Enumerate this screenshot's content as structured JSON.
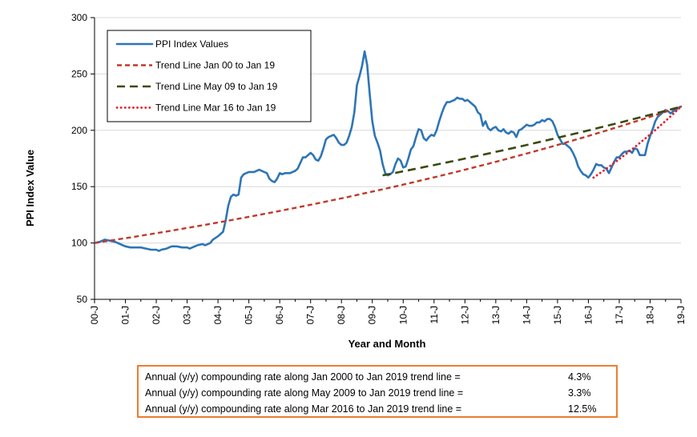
{
  "chart_data": {
    "type": "line",
    "xlabel": "Year and Month",
    "ylabel": "PPI Index Value",
    "ylim": [
      50,
      300
    ],
    "yticks": [
      50,
      100,
      150,
      200,
      250,
      300
    ],
    "x_range": [
      0,
      228
    ],
    "xticks": [
      {
        "x": 0,
        "label": "00-J"
      },
      {
        "x": 12,
        "label": "01-J"
      },
      {
        "x": 24,
        "label": "02-J"
      },
      {
        "x": 36,
        "label": "03-J"
      },
      {
        "x": 48,
        "label": "04-J"
      },
      {
        "x": 60,
        "label": "05-J"
      },
      {
        "x": 72,
        "label": "06-J"
      },
      {
        "x": 84,
        "label": "07-J"
      },
      {
        "x": 96,
        "label": "08-J"
      },
      {
        "x": 108,
        "label": "09-J"
      },
      {
        "x": 120,
        "label": "10-J"
      },
      {
        "x": 132,
        "label": "11-J"
      },
      {
        "x": 144,
        "label": "12-J"
      },
      {
        "x": 156,
        "label": "13-J"
      },
      {
        "x": 168,
        "label": "14-J"
      },
      {
        "x": 180,
        "label": "15-J"
      },
      {
        "x": 192,
        "label": "16-J"
      },
      {
        "x": 204,
        "label": "17-J"
      },
      {
        "x": 216,
        "label": "18-J"
      },
      {
        "x": 228,
        "label": "19-J"
      }
    ],
    "legend_position": "top-left",
    "series": [
      {
        "name": "PPI Index Values",
        "color": "#2E75B6",
        "style": "solid",
        "points": [
          [
            0,
            100
          ],
          [
            2,
            101
          ],
          [
            4,
            103
          ],
          [
            6,
            102
          ],
          [
            8,
            101
          ],
          [
            10,
            99
          ],
          [
            12,
            97
          ],
          [
            14,
            96
          ],
          [
            16,
            96
          ],
          [
            18,
            96
          ],
          [
            20,
            95
          ],
          [
            22,
            94
          ],
          [
            24,
            94
          ],
          [
            25,
            93
          ],
          [
            26,
            94
          ],
          [
            28,
            95
          ],
          [
            30,
            97
          ],
          [
            32,
            97
          ],
          [
            34,
            96
          ],
          [
            36,
            96
          ],
          [
            37,
            95
          ],
          [
            38,
            96
          ],
          [
            40,
            98
          ],
          [
            42,
            99
          ],
          [
            43,
            98
          ],
          [
            45,
            100
          ],
          [
            46,
            103
          ],
          [
            48,
            106
          ],
          [
            50,
            110
          ],
          [
            51,
            120
          ],
          [
            52,
            133
          ],
          [
            53,
            141
          ],
          [
            54,
            143
          ],
          [
            55,
            142
          ],
          [
            56,
            143
          ],
          [
            57,
            158
          ],
          [
            58,
            161
          ],
          [
            60,
            163
          ],
          [
            62,
            163
          ],
          [
            64,
            165
          ],
          [
            66,
            163
          ],
          [
            67,
            162
          ],
          [
            68,
            157
          ],
          [
            69,
            155
          ],
          [
            70,
            154
          ],
          [
            71,
            157
          ],
          [
            72,
            162
          ],
          [
            73,
            161
          ],
          [
            74,
            162
          ],
          [
            76,
            162
          ],
          [
            78,
            164
          ],
          [
            79,
            166
          ],
          [
            80,
            171
          ],
          [
            81,
            176
          ],
          [
            82,
            176
          ],
          [
            83,
            178
          ],
          [
            84,
            180
          ],
          [
            85,
            178
          ],
          [
            86,
            174
          ],
          [
            87,
            173
          ],
          [
            88,
            177
          ],
          [
            89,
            184
          ],
          [
            90,
            192
          ],
          [
            91,
            194
          ],
          [
            92,
            195
          ],
          [
            93,
            196
          ],
          [
            94,
            193
          ],
          [
            95,
            189
          ],
          [
            96,
            187
          ],
          [
            97,
            187
          ],
          [
            98,
            189
          ],
          [
            99,
            195
          ],
          [
            100,
            203
          ],
          [
            101,
            216
          ],
          [
            102,
            240
          ],
          [
            103,
            248
          ],
          [
            104,
            257
          ],
          [
            105,
            270
          ],
          [
            106,
            258
          ],
          [
            107,
            232
          ],
          [
            108,
            208
          ],
          [
            109,
            195
          ],
          [
            110,
            189
          ],
          [
            111,
            182
          ],
          [
            112,
            170
          ],
          [
            113,
            162
          ],
          [
            114,
            160
          ],
          [
            115,
            161
          ],
          [
            116,
            163
          ],
          [
            117,
            170
          ],
          [
            118,
            175
          ],
          [
            119,
            173
          ],
          [
            120,
            167
          ],
          [
            121,
            168
          ],
          [
            122,
            175
          ],
          [
            123,
            183
          ],
          [
            124,
            186
          ],
          [
            125,
            194
          ],
          [
            126,
            201
          ],
          [
            127,
            200
          ],
          [
            128,
            193
          ],
          [
            129,
            191
          ],
          [
            130,
            194
          ],
          [
            131,
            196
          ],
          [
            132,
            195
          ],
          [
            133,
            200
          ],
          [
            134,
            208
          ],
          [
            135,
            215
          ],
          [
            136,
            221
          ],
          [
            137,
            225
          ],
          [
            138,
            225
          ],
          [
            139,
            226
          ],
          [
            140,
            227
          ],
          [
            141,
            229
          ],
          [
            142,
            228
          ],
          [
            143,
            228
          ],
          [
            144,
            226
          ],
          [
            145,
            227
          ],
          [
            146,
            225
          ],
          [
            147,
            223
          ],
          [
            148,
            221
          ],
          [
            149,
            216
          ],
          [
            150,
            214
          ],
          [
            151,
            204
          ],
          [
            152,
            208
          ],
          [
            153,
            202
          ],
          [
            154,
            200
          ],
          [
            155,
            202
          ],
          [
            156,
            203
          ],
          [
            157,
            200
          ],
          [
            158,
            199
          ],
          [
            159,
            201
          ],
          [
            160,
            198
          ],
          [
            161,
            197
          ],
          [
            162,
            199
          ],
          [
            163,
            198
          ],
          [
            164,
            194
          ],
          [
            165,
            200
          ],
          [
            166,
            201
          ],
          [
            167,
            203
          ],
          [
            168,
            205
          ],
          [
            169,
            204
          ],
          [
            170,
            204
          ],
          [
            171,
            205
          ],
          [
            172,
            207
          ],
          [
            173,
            207
          ],
          [
            174,
            209
          ],
          [
            175,
            208
          ],
          [
            176,
            210
          ],
          [
            177,
            210
          ],
          [
            178,
            208
          ],
          [
            179,
            203
          ],
          [
            180,
            196
          ],
          [
            181,
            192
          ],
          [
            182,
            188
          ],
          [
            183,
            188
          ],
          [
            184,
            186
          ],
          [
            185,
            184
          ],
          [
            186,
            180
          ],
          [
            187,
            175
          ],
          [
            188,
            168
          ],
          [
            189,
            164
          ],
          [
            190,
            161
          ],
          [
            191,
            160
          ],
          [
            192,
            158
          ],
          [
            193,
            161
          ],
          [
            194,
            165
          ],
          [
            195,
            170
          ],
          [
            196,
            169
          ],
          [
            197,
            169
          ],
          [
            198,
            167
          ],
          [
            199,
            166
          ],
          [
            200,
            162
          ],
          [
            201,
            167
          ],
          [
            202,
            172
          ],
          [
            203,
            176
          ],
          [
            204,
            176
          ],
          [
            205,
            179
          ],
          [
            206,
            181
          ],
          [
            207,
            181
          ],
          [
            208,
            182
          ],
          [
            209,
            180
          ],
          [
            210,
            184
          ],
          [
            211,
            183
          ],
          [
            212,
            178
          ],
          [
            213,
            178
          ],
          [
            214,
            178
          ],
          [
            215,
            188
          ],
          [
            216,
            195
          ],
          [
            217,
            201
          ],
          [
            218,
            208
          ],
          [
            219,
            212
          ],
          [
            220,
            214
          ],
          [
            221,
            216
          ],
          [
            222,
            218
          ],
          [
            223,
            217
          ],
          [
            224,
            215
          ],
          [
            225,
            217
          ],
          [
            226,
            218
          ],
          [
            227,
            220
          ],
          [
            228,
            221
          ]
        ]
      },
      {
        "name": "Trend Line Jan 00 to Jan 19",
        "color": "#C0392B",
        "style": "dashed",
        "start": [
          0,
          100
        ],
        "end": [
          228,
          221
        ],
        "interpolation": "exponential"
      },
      {
        "name": "Trend Line May 09 to Jan 19",
        "color": "#3A4A0F",
        "style": "longdash",
        "start": [
          112,
          160
        ],
        "end": [
          228,
          221
        ],
        "interpolation": "exponential"
      },
      {
        "name": "Trend Line Mar 16 to Jan 19",
        "color": "#E0202A",
        "style": "dotted",
        "start": [
          194,
          158
        ],
        "end": [
          228,
          221
        ],
        "interpolation": "exponential"
      }
    ]
  },
  "rates_box": {
    "border_color": "#ED7D31",
    "rows": [
      {
        "label": "Annual (y/y) compounding rate along Jan 2000 to Jan 2019 trend line =",
        "value": "4.3%"
      },
      {
        "label": "Annual (y/y) compounding rate along May 2009 to Jan 2019 trend line =",
        "value": "3.3%"
      },
      {
        "label": "Annual (y/y) compounding rate along Mar 2016 to Jan 2019 trend line =",
        "value": "12.5%"
      }
    ]
  }
}
